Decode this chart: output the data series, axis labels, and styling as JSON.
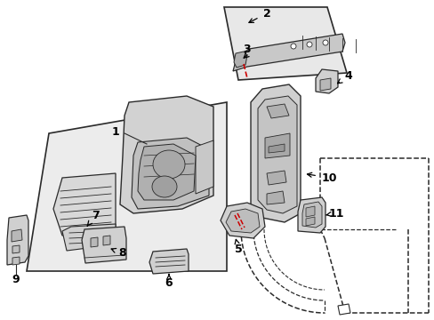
{
  "bg_color": "#ffffff",
  "panel1_color": "#ececec",
  "panel2_color": "#e8e8e8",
  "line_color": "#2a2a2a",
  "label_color": "#000000",
  "red_color": "#cc0000",
  "gray_part": "#b8b8b8",
  "gray_dark": "#888888",
  "figsize": [
    4.89,
    3.6
  ],
  "dpi": 100
}
